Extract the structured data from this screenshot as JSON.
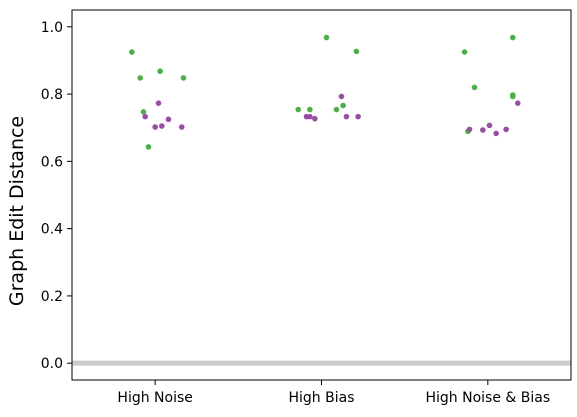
{
  "chart_data": {
    "type": "scatter",
    "ylabel": "Graph Edit Distance",
    "xlabel": "",
    "title": "",
    "categories": [
      "High Noise",
      "High Bias",
      "High Noise & Bias"
    ],
    "ylim": [
      -0.05,
      1.05
    ],
    "yticks": [
      0.0,
      0.2,
      0.4,
      0.6,
      0.8,
      1.0
    ],
    "ytick_labels": [
      "0.0",
      "0.2",
      "0.4",
      "0.6",
      "0.8",
      "1.0"
    ],
    "grid": false,
    "legend": "none",
    "reference_line": {
      "y": 0.0,
      "color": "#cccccc"
    },
    "series": [
      {
        "color": "#4daf4a",
        "points": [
          {
            "category": "High Noise",
            "jitter": -0.14,
            "y": 0.925
          },
          {
            "category": "High Noise",
            "jitter": -0.09,
            "y": 0.848
          },
          {
            "category": "High Noise",
            "jitter": 0.03,
            "y": 0.868
          },
          {
            "category": "High Noise",
            "jitter": 0.17,
            "y": 0.848
          },
          {
            "category": "High Noise",
            "jitter": -0.07,
            "y": 0.747
          },
          {
            "category": "High Noise",
            "jitter": -0.04,
            "y": 0.643
          },
          {
            "category": "High Bias",
            "jitter": -0.14,
            "y": 0.754
          },
          {
            "category": "High Bias",
            "jitter": -0.07,
            "y": 0.754
          },
          {
            "category": "High Bias",
            "jitter": 0.03,
            "y": 0.968
          },
          {
            "category": "High Bias",
            "jitter": 0.09,
            "y": 0.754
          },
          {
            "category": "High Bias",
            "jitter": 0.13,
            "y": 0.766
          },
          {
            "category": "High Bias",
            "jitter": 0.21,
            "y": 0.927
          },
          {
            "category": "High Noise & Bias",
            "jitter": -0.14,
            "y": 0.925
          },
          {
            "category": "High Noise & Bias",
            "jitter": -0.08,
            "y": 0.82
          },
          {
            "category": "High Noise & Bias",
            "jitter": -0.12,
            "y": 0.689
          },
          {
            "category": "High Noise & Bias",
            "jitter": 0.15,
            "y": 0.968
          },
          {
            "category": "High Noise & Bias",
            "jitter": 0.15,
            "y": 0.797
          },
          {
            "category": "High Noise & Bias",
            "jitter": 0.15,
            "y": 0.793
          }
        ]
      },
      {
        "color": "#984ea3",
        "points": [
          {
            "category": "High Noise",
            "jitter": -0.06,
            "y": 0.733
          },
          {
            "category": "High Noise",
            "jitter": 0.02,
            "y": 0.773
          },
          {
            "category": "High Noise",
            "jitter": 0.0,
            "y": 0.702
          },
          {
            "category": "High Noise",
            "jitter": 0.04,
            "y": 0.705
          },
          {
            "category": "High Noise",
            "jitter": 0.08,
            "y": 0.725
          },
          {
            "category": "High Noise",
            "jitter": 0.16,
            "y": 0.702
          },
          {
            "category": "High Bias",
            "jitter": -0.09,
            "y": 0.733
          },
          {
            "category": "High Bias",
            "jitter": -0.07,
            "y": 0.733
          },
          {
            "category": "High Bias",
            "jitter": -0.04,
            "y": 0.727
          },
          {
            "category": "High Bias",
            "jitter": 0.12,
            "y": 0.793
          },
          {
            "category": "High Bias",
            "jitter": 0.15,
            "y": 0.733
          },
          {
            "category": "High Bias",
            "jitter": 0.22,
            "y": 0.733
          },
          {
            "category": "High Noise & Bias",
            "jitter": -0.11,
            "y": 0.695
          },
          {
            "category": "High Noise & Bias",
            "jitter": -0.03,
            "y": 0.693
          },
          {
            "category": "High Noise & Bias",
            "jitter": 0.01,
            "y": 0.707
          },
          {
            "category": "High Noise & Bias",
            "jitter": 0.05,
            "y": 0.683
          },
          {
            "category": "High Noise & Bias",
            "jitter": 0.11,
            "y": 0.695
          },
          {
            "category": "High Noise & Bias",
            "jitter": 0.18,
            "y": 0.773
          }
        ]
      }
    ]
  }
}
